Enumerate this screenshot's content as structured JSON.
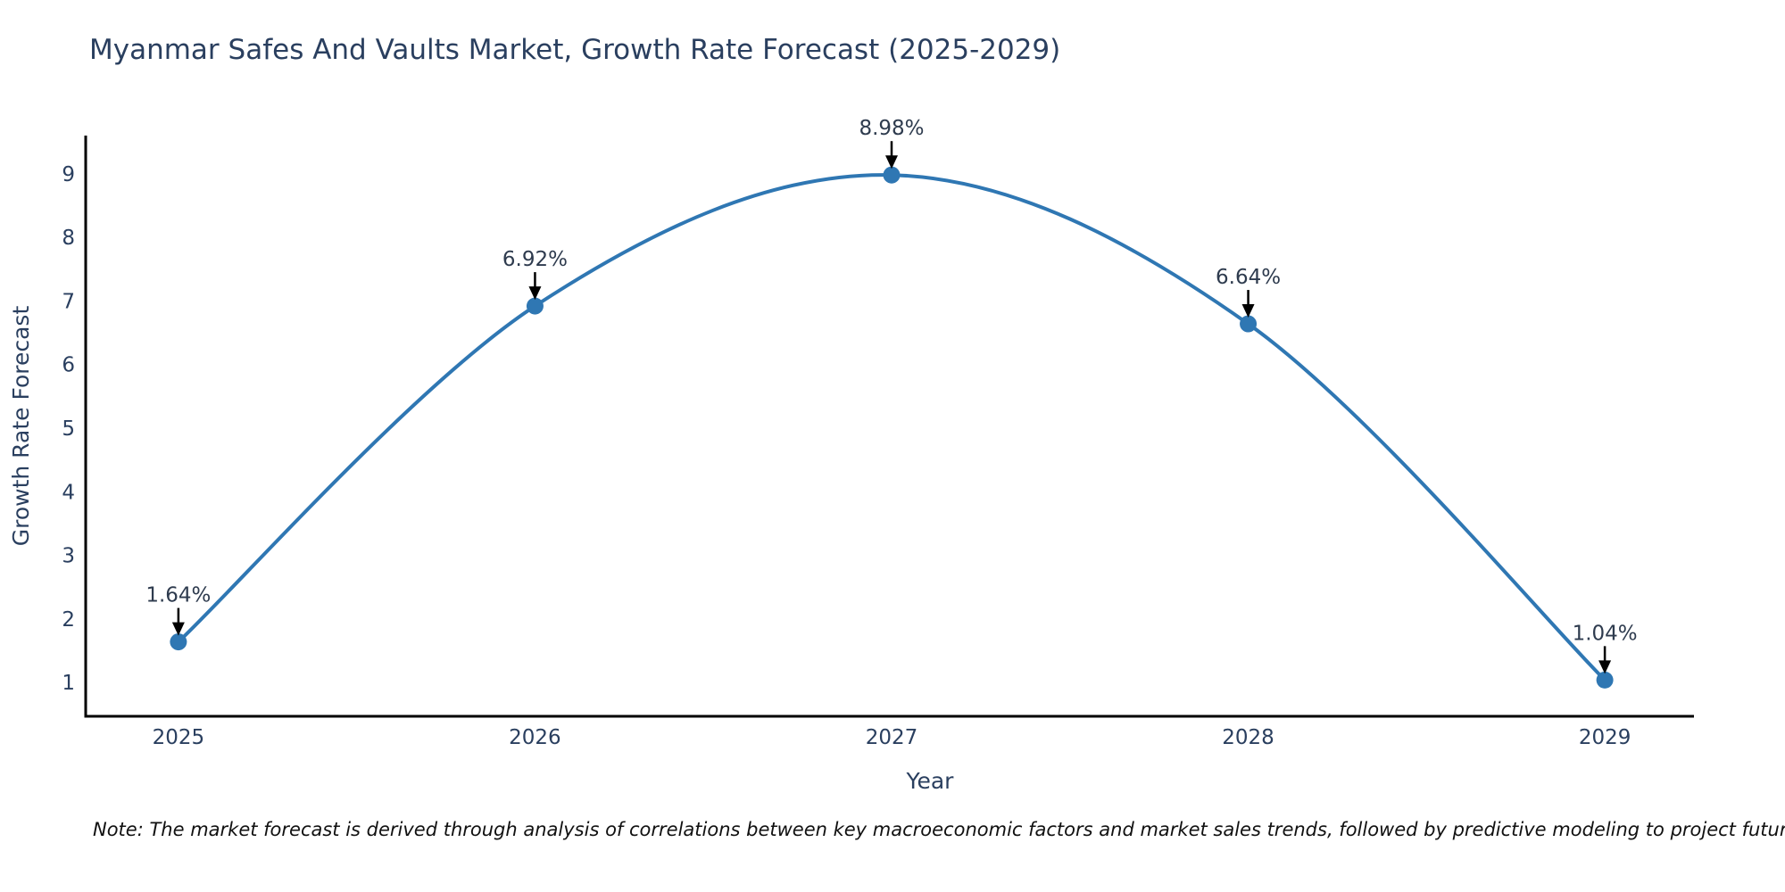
{
  "page": {
    "title": "Myanmar Safes And Vaults Market, Growth Rate Forecast (2025-2029)",
    "note": "Note: The market forecast is derived through analysis of correlations between key macroeconomic factors and market sales trends, followed by predictive modeling to project future sales."
  },
  "colors": {
    "title_text": "#2a3f5f",
    "tick_text": "#2a3f5f",
    "axis_label_text": "#2a3f5f",
    "annotation_text": "#2e3b4e",
    "line": "#2f77b3",
    "marker": "#2f77b3",
    "arrow": "#000000",
    "axis": "#000000",
    "background": "#ffffff"
  },
  "chart_data": {
    "type": "line",
    "title": "Myanmar Safes And Vaults Market, Growth Rate Forecast (2025-2029)",
    "x": [
      2025,
      2026,
      2027,
      2028,
      2029
    ],
    "values": [
      1.64,
      6.92,
      8.98,
      6.64,
      1.04
    ],
    "point_labels": [
      "1.64%",
      "6.92%",
      "8.98%",
      "6.64%",
      "1.04%"
    ],
    "xlabel": "Year",
    "ylabel": "Growth Rate Forecast",
    "xticks": [
      "2025",
      "2026",
      "2027",
      "2028",
      "2029"
    ],
    "yticks": [
      1,
      2,
      3,
      4,
      5,
      6,
      7,
      8,
      9
    ],
    "xlim": [
      2024.74,
      2029.25
    ],
    "ylim": [
      0.47,
      9.6
    ],
    "grid": false,
    "legend": "none",
    "line_style": "smooth",
    "markers": true,
    "annotations": "arrow-down-to-point"
  }
}
